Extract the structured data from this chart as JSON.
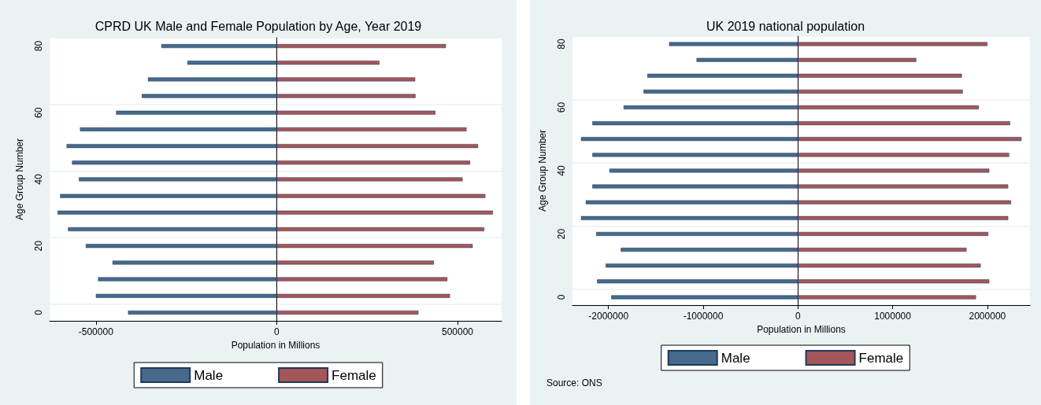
{
  "chart_data": [
    {
      "type": "bar",
      "orientation": "horizontal",
      "stacked": true,
      "title": "CPRD UK Male and Female Population by Age, Year 2019",
      "xlabel": "Population in Millions",
      "ylabel": "Age Group Number",
      "categories": [
        "80",
        null,
        null,
        null,
        "60",
        null,
        null,
        null,
        "40",
        null,
        null,
        null,
        "20",
        null,
        null,
        null,
        "0"
      ],
      "series": [
        {
          "name": "Male",
          "color": "#46698c",
          "values": [
            -319000,
            -247000,
            -356000,
            -373000,
            -444000,
            -544000,
            -581000,
            -566000,
            -547000,
            -599000,
            -606000,
            -577000,
            -528000,
            -454000,
            -494000,
            -500000,
            -411000
          ]
        },
        {
          "name": "Female",
          "color": "#a4565b",
          "values": [
            468000,
            284000,
            383000,
            384000,
            439000,
            525000,
            557000,
            535000,
            514000,
            577000,
            598000,
            574000,
            542000,
            435000,
            472000,
            479000,
            392000
          ]
        }
      ],
      "xlim": [
        -628000,
        622000
      ],
      "xticks": [
        -500000,
        0,
        500000
      ],
      "grid": "y",
      "legend": "bottom"
    },
    {
      "type": "bar",
      "orientation": "horizontal",
      "stacked": true,
      "title": "UK 2019 national population",
      "xlabel": "Population in Millions",
      "ylabel": "Age Group Number",
      "categories": [
        "80",
        null,
        null,
        null,
        "60",
        null,
        null,
        null,
        "40",
        null,
        null,
        null,
        "20",
        null,
        null,
        null,
        "0"
      ],
      "series": [
        {
          "name": "Male",
          "color": "#46698c",
          "values": [
            -1360000,
            -1070000,
            -1590000,
            -1630000,
            -1840000,
            -2170000,
            -2290000,
            -2170000,
            -1990000,
            -2170000,
            -2240000,
            -2290000,
            -2130000,
            -1870000,
            -2030000,
            -2120000,
            -1970000
          ]
        },
        {
          "name": "Female",
          "color": "#a4565b",
          "values": [
            2000000,
            1250000,
            1730000,
            1740000,
            1910000,
            2240000,
            2360000,
            2230000,
            2020000,
            2220000,
            2250000,
            2220000,
            2010000,
            1780000,
            1930000,
            2020000,
            1880000
          ]
        }
      ],
      "xlim": [
        -2380000,
        2450000
      ],
      "xticks": [
        -2000000,
        -1000000,
        0,
        1000000,
        2000000
      ],
      "grid": "y",
      "legend": "bottom",
      "annotations": [
        "Source: ONS"
      ]
    }
  ]
}
